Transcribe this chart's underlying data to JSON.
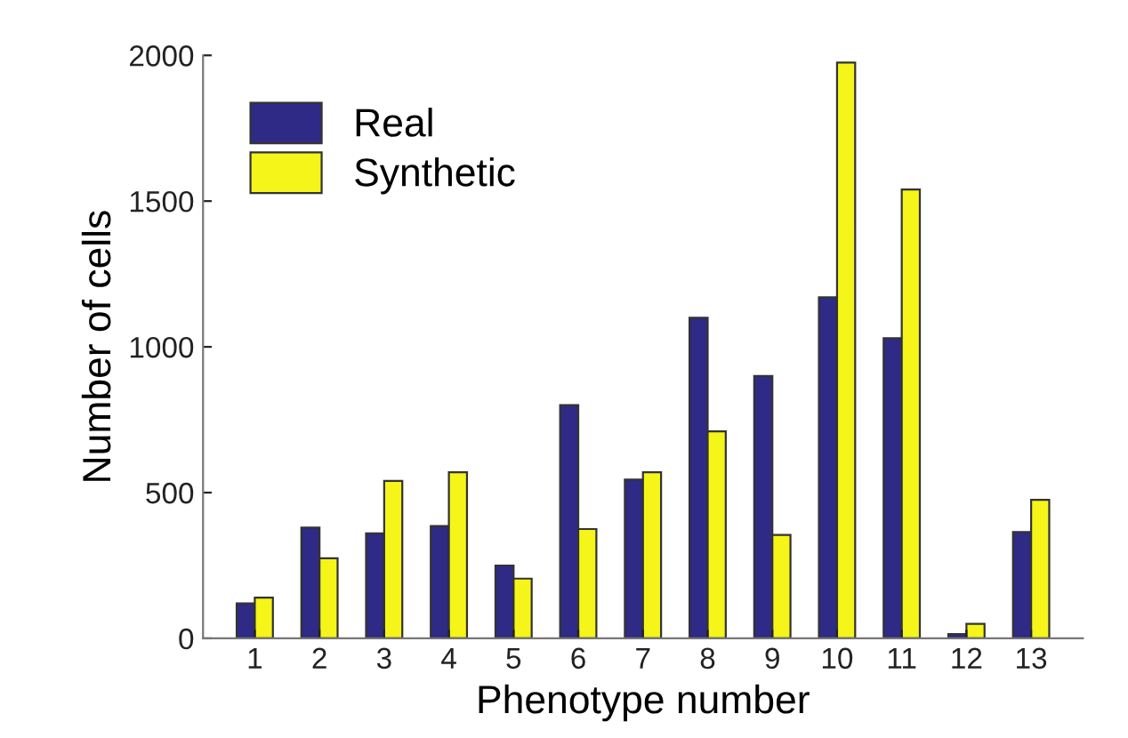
{
  "chart_data": {
    "type": "bar",
    "xlabel": "Phenotype number",
    "ylabel": "Number of cells",
    "categories": [
      "1",
      "2",
      "3",
      "4",
      "5",
      "6",
      "7",
      "8",
      "9",
      "10",
      "11",
      "12",
      "13"
    ],
    "series": [
      {
        "name": "Real",
        "color": "#2e2a85",
        "values": [
          120,
          380,
          360,
          385,
          250,
          800,
          545,
          1100,
          900,
          1170,
          1030,
          15,
          365
        ]
      },
      {
        "name": "Synthetic",
        "color": "#f5f51a",
        "values": [
          140,
          275,
          540,
          570,
          205,
          375,
          570,
          710,
          355,
          1975,
          1540,
          50,
          475
        ]
      }
    ],
    "ylim": [
      0,
      2000
    ],
    "yticks": [
      0,
      500,
      1000,
      1500,
      2000
    ],
    "grid": false,
    "legend": "top left"
  }
}
